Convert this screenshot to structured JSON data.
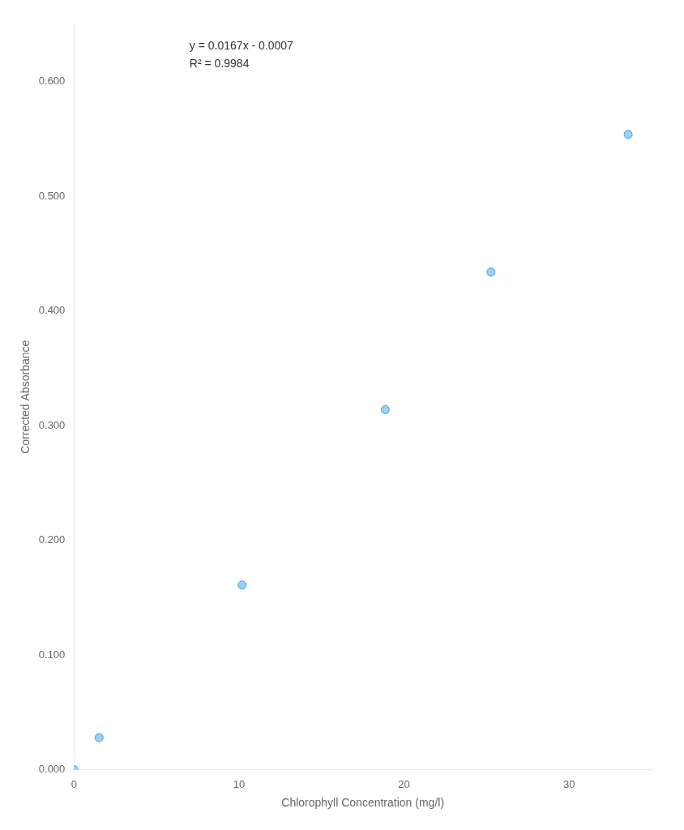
{
  "chart_data": {
    "type": "scatter",
    "x": [
      0.0,
      1.52,
      10.19,
      18.86,
      25.27,
      33.58
    ],
    "values": [
      0.0,
      0.028,
      0.161,
      0.314,
      0.434,
      0.554
    ],
    "xlabel": "Chlorophyll Concentration (mg/l)",
    "ylabel": "Corrected Absorbance",
    "annotations": [
      "y = 0.0167x - 0.0007",
      "R² = 0.9984"
    ],
    "xlim": [
      0,
      35
    ],
    "ylim": [
      0,
      0.65
    ],
    "xticks": [
      0,
      10,
      20,
      30
    ],
    "yticks": [
      {
        "value": 0.0,
        "label": "0.000"
      },
      {
        "value": 0.1,
        "label": "0.100"
      },
      {
        "value": 0.2,
        "label": "0.200"
      },
      {
        "value": 0.3,
        "label": "0.300"
      },
      {
        "value": 0.4,
        "label": "0.400"
      },
      {
        "value": 0.5,
        "label": "0.500"
      },
      {
        "value": 0.6,
        "label": "0.600"
      }
    ],
    "grid": false
  }
}
